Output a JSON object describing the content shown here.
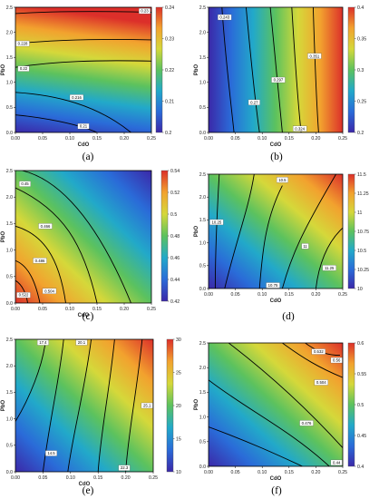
{
  "colors": {
    "colormap": [
      "#3b28a8",
      "#2a6bd8",
      "#22a9c9",
      "#5cc25e",
      "#d5d83a",
      "#f2a22e",
      "#dc2f2a"
    ]
  },
  "chart_data": [
    {
      "type": "heatmap",
      "panel": "a",
      "caption": "(a)",
      "xlabel": "CdO",
      "ylabel": "PbO",
      "xlim": [
        0,
        0.25
      ],
      "ylim": [
        0,
        2.5
      ],
      "xticks": [
        "0.00",
        "0.05",
        "0.10",
        "0.15",
        "0.20",
        "0.25"
      ],
      "yticks": [
        "0.0",
        "0.5",
        "1.0",
        "1.5",
        "2.0",
        "2.5"
      ],
      "colorbar_range": [
        0.2,
        0.24
      ],
      "colorbar_ticks": [
        "0.24",
        "0.23",
        "0.22",
        "0.21",
        "0.2"
      ],
      "color_gradient": {
        "low_corner": "bottom-left",
        "direction": "mostly vertical"
      },
      "contour_labels": [
        "0.23",
        "0.228",
        "0.22",
        "0.216",
        "0.21"
      ]
    },
    {
      "type": "heatmap",
      "panel": "b",
      "caption": "(b)",
      "xlabel": "CdO",
      "ylabel": "PbO",
      "xlim": [
        0,
        0.25
      ],
      "ylim": [
        0,
        2.5
      ],
      "xticks": [
        "0.00",
        "0.05",
        "0.10",
        "0.15",
        "0.20",
        "0.25"
      ],
      "yticks": [
        "0.0",
        "0.5",
        "1.0",
        "1.5",
        "2.0",
        "2.5"
      ],
      "colorbar_range": [
        0.2,
        0.4
      ],
      "colorbar_ticks": [
        "0.4",
        "0.35",
        "0.3",
        "0.25",
        "0.2"
      ],
      "color_gradient": {
        "low_corner": "left",
        "direction": "horizontal"
      },
      "contour_labels": [
        "0.243",
        "0.27",
        "0.297",
        "0.324",
        "0.351"
      ]
    },
    {
      "type": "heatmap",
      "panel": "c",
      "caption": "(c)",
      "xlabel": "CdO",
      "ylabel": "PbO",
      "xlim": [
        0,
        0.25
      ],
      "ylim": [
        0,
        2.5
      ],
      "xticks": [
        "0.00",
        "0.05",
        "0.10",
        "0.15",
        "0.20",
        "0.25"
      ],
      "yticks": [
        "0.0",
        "0.5",
        "1.0",
        "1.5",
        "2.0",
        "2.5"
      ],
      "colorbar_range": [
        0.42,
        0.54
      ],
      "colorbar_ticks": [
        "0.54",
        "0.52",
        "0.5",
        "0.48",
        "0.46",
        "0.44",
        "0.42"
      ],
      "color_gradient": {
        "low_corner": "top-right",
        "direction": "diagonal"
      },
      "contour_labels": [
        "0.45",
        "0.466",
        "0.486",
        "0.522",
        "0.504"
      ]
    },
    {
      "type": "heatmap",
      "panel": "d",
      "caption": "(d)",
      "xlabel": "CdO",
      "ylabel": "PbO",
      "xlim": [
        0,
        0.25
      ],
      "ylim": [
        0,
        2.5
      ],
      "xticks": [
        "0.00",
        "0.05",
        "0.10",
        "0.15",
        "0.20",
        "0.25"
      ],
      "yticks": [
        "0.0",
        "0.5",
        "1.0",
        "1.5",
        "2.0",
        "2.5"
      ],
      "colorbar_range": [
        10,
        11.5
      ],
      "colorbar_ticks": [
        "11.5",
        "11.25",
        "11",
        "10.75",
        "10.5",
        "10.25",
        "10"
      ],
      "color_gradient": {
        "low_corner": "bottom-left",
        "direction": "saddle"
      },
      "contour_labels": [
        "10.25",
        "10.5",
        "10.75",
        "11",
        "11.25"
      ]
    },
    {
      "type": "heatmap",
      "panel": "e",
      "caption": "(e)",
      "xlabel": "CdO",
      "ylabel": "PbO",
      "xlim": [
        0,
        0.25
      ],
      "ylim": [
        0,
        2.5
      ],
      "xticks": [
        "0.00",
        "0.05",
        "0.10",
        "0.15",
        "0.20",
        "0.25"
      ],
      "yticks": [
        "0.0",
        "0.5",
        "1.0",
        "1.5",
        "2.0",
        "2.5"
      ],
      "colorbar_range": [
        10,
        30
      ],
      "colorbar_ticks": [
        "30",
        "25",
        "20",
        "15",
        "10"
      ],
      "color_gradient": {
        "low_corner": "bottom-left",
        "direction": "diagonal"
      },
      "contour_labels": [
        "17.4",
        "20.1",
        "25.1",
        "14.5",
        "22.3"
      ]
    },
    {
      "type": "heatmap",
      "panel": "f",
      "caption": "(f)",
      "xlabel": "CdO",
      "ylabel": "PbO",
      "xlim": [
        0,
        0.25
      ],
      "ylim": [
        0,
        2.5
      ],
      "xticks": [
        "0.00",
        "0.05",
        "0.10",
        "0.15",
        "0.20",
        "0.25"
      ],
      "yticks": [
        "0.0",
        "0.5",
        "1.0",
        "1.5",
        "2.0",
        "2.5"
      ],
      "colorbar_range": [
        0.4,
        0.6
      ],
      "colorbar_ticks": [
        "0.6",
        "0.55",
        "0.5",
        "0.45",
        "0.4"
      ],
      "color_gradient": {
        "low_corner": "bottom-left",
        "direction": "diagonal"
      },
      "contour_labels": [
        "0.532",
        "0.56",
        "0.504",
        "0.476",
        "0.44"
      ]
    }
  ]
}
